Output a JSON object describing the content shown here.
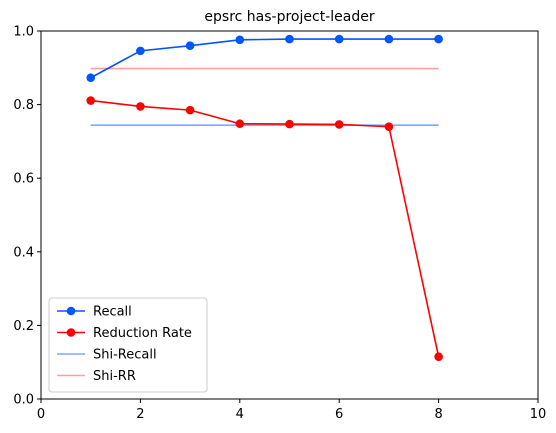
{
  "chart_data": {
    "type": "line",
    "title": "epsrc has-project-leader",
    "xlabel": "",
    "ylabel": "",
    "xlim": [
      0,
      10
    ],
    "ylim": [
      0,
      1
    ],
    "xticks": [
      0,
      2,
      4,
      6,
      8,
      10
    ],
    "yticks": [
      0.0,
      0.2,
      0.4,
      0.6,
      0.8,
      1.0
    ],
    "xtick_labels": [
      "0",
      "2",
      "4",
      "6",
      "8",
      "10"
    ],
    "ytick_labels": [
      "0.0",
      "0.2",
      "0.4",
      "0.6",
      "0.8",
      "1.0"
    ],
    "grid": false,
    "legend_position": "lower-left",
    "series": [
      {
        "name": "Recall",
        "color": "#0055ff",
        "marker": "circle",
        "x": [
          1,
          2,
          3,
          4,
          5,
          6,
          7,
          8
        ],
        "y": [
          0.873,
          0.946,
          0.96,
          0.976,
          0.978,
          0.978,
          0.978,
          0.978
        ]
      },
      {
        "name": "Reduction Rate",
        "color": "#ff0000",
        "marker": "circle",
        "x": [
          1,
          2,
          3,
          4,
          5,
          6,
          7,
          8
        ],
        "y": [
          0.811,
          0.795,
          0.785,
          0.748,
          0.747,
          0.746,
          0.74,
          0.115
        ]
      },
      {
        "name": "Shi-Recall",
        "color": "#7fa8ff",
        "marker": "none",
        "x": [
          1,
          8
        ],
        "y": [
          0.744,
          0.744
        ]
      },
      {
        "name": "Shi-RR",
        "color": "#ff9f9f",
        "marker": "none",
        "x": [
          1,
          8
        ],
        "y": [
          0.898,
          0.898
        ]
      }
    ]
  }
}
